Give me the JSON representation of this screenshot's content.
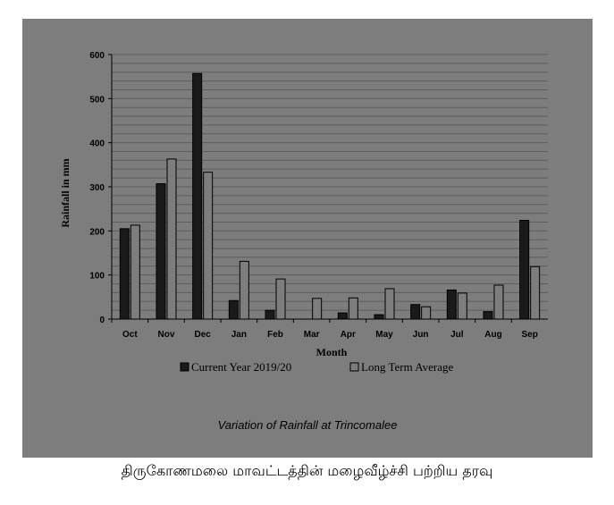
{
  "chart_data": {
    "type": "bar",
    "title": "",
    "xlabel": "Month",
    "ylabel": "Rainfall in mm",
    "ylim": [
      0,
      600
    ],
    "yticks": [
      0,
      100,
      200,
      300,
      400,
      500,
      600
    ],
    "grid": true,
    "legend_position": "bottom",
    "categories": [
      "Oct",
      "Nov",
      "Dec",
      "Jan",
      "Feb",
      "Mar",
      "Apr",
      "May",
      "Jun",
      "Jul",
      "Aug",
      "Sep"
    ],
    "series": [
      {
        "name": "Current Year 2019/20",
        "color": "#1a1a1a",
        "values": [
          205,
          307,
          557,
          42,
          20,
          0,
          14,
          10,
          33,
          66,
          17,
          224
        ]
      },
      {
        "name": "Long Term Average",
        "color": "#7d7d7d",
        "values": [
          213,
          363,
          333,
          131,
          91,
          47,
          48,
          69,
          28,
          59,
          77,
          119
        ]
      }
    ]
  },
  "caption": "Variation of Rainfall at Trincomalee",
  "footer": "திருகோணமலை மாவட்டத்தின் மழைவீழ்ச்சி பற்றிய தரவு"
}
